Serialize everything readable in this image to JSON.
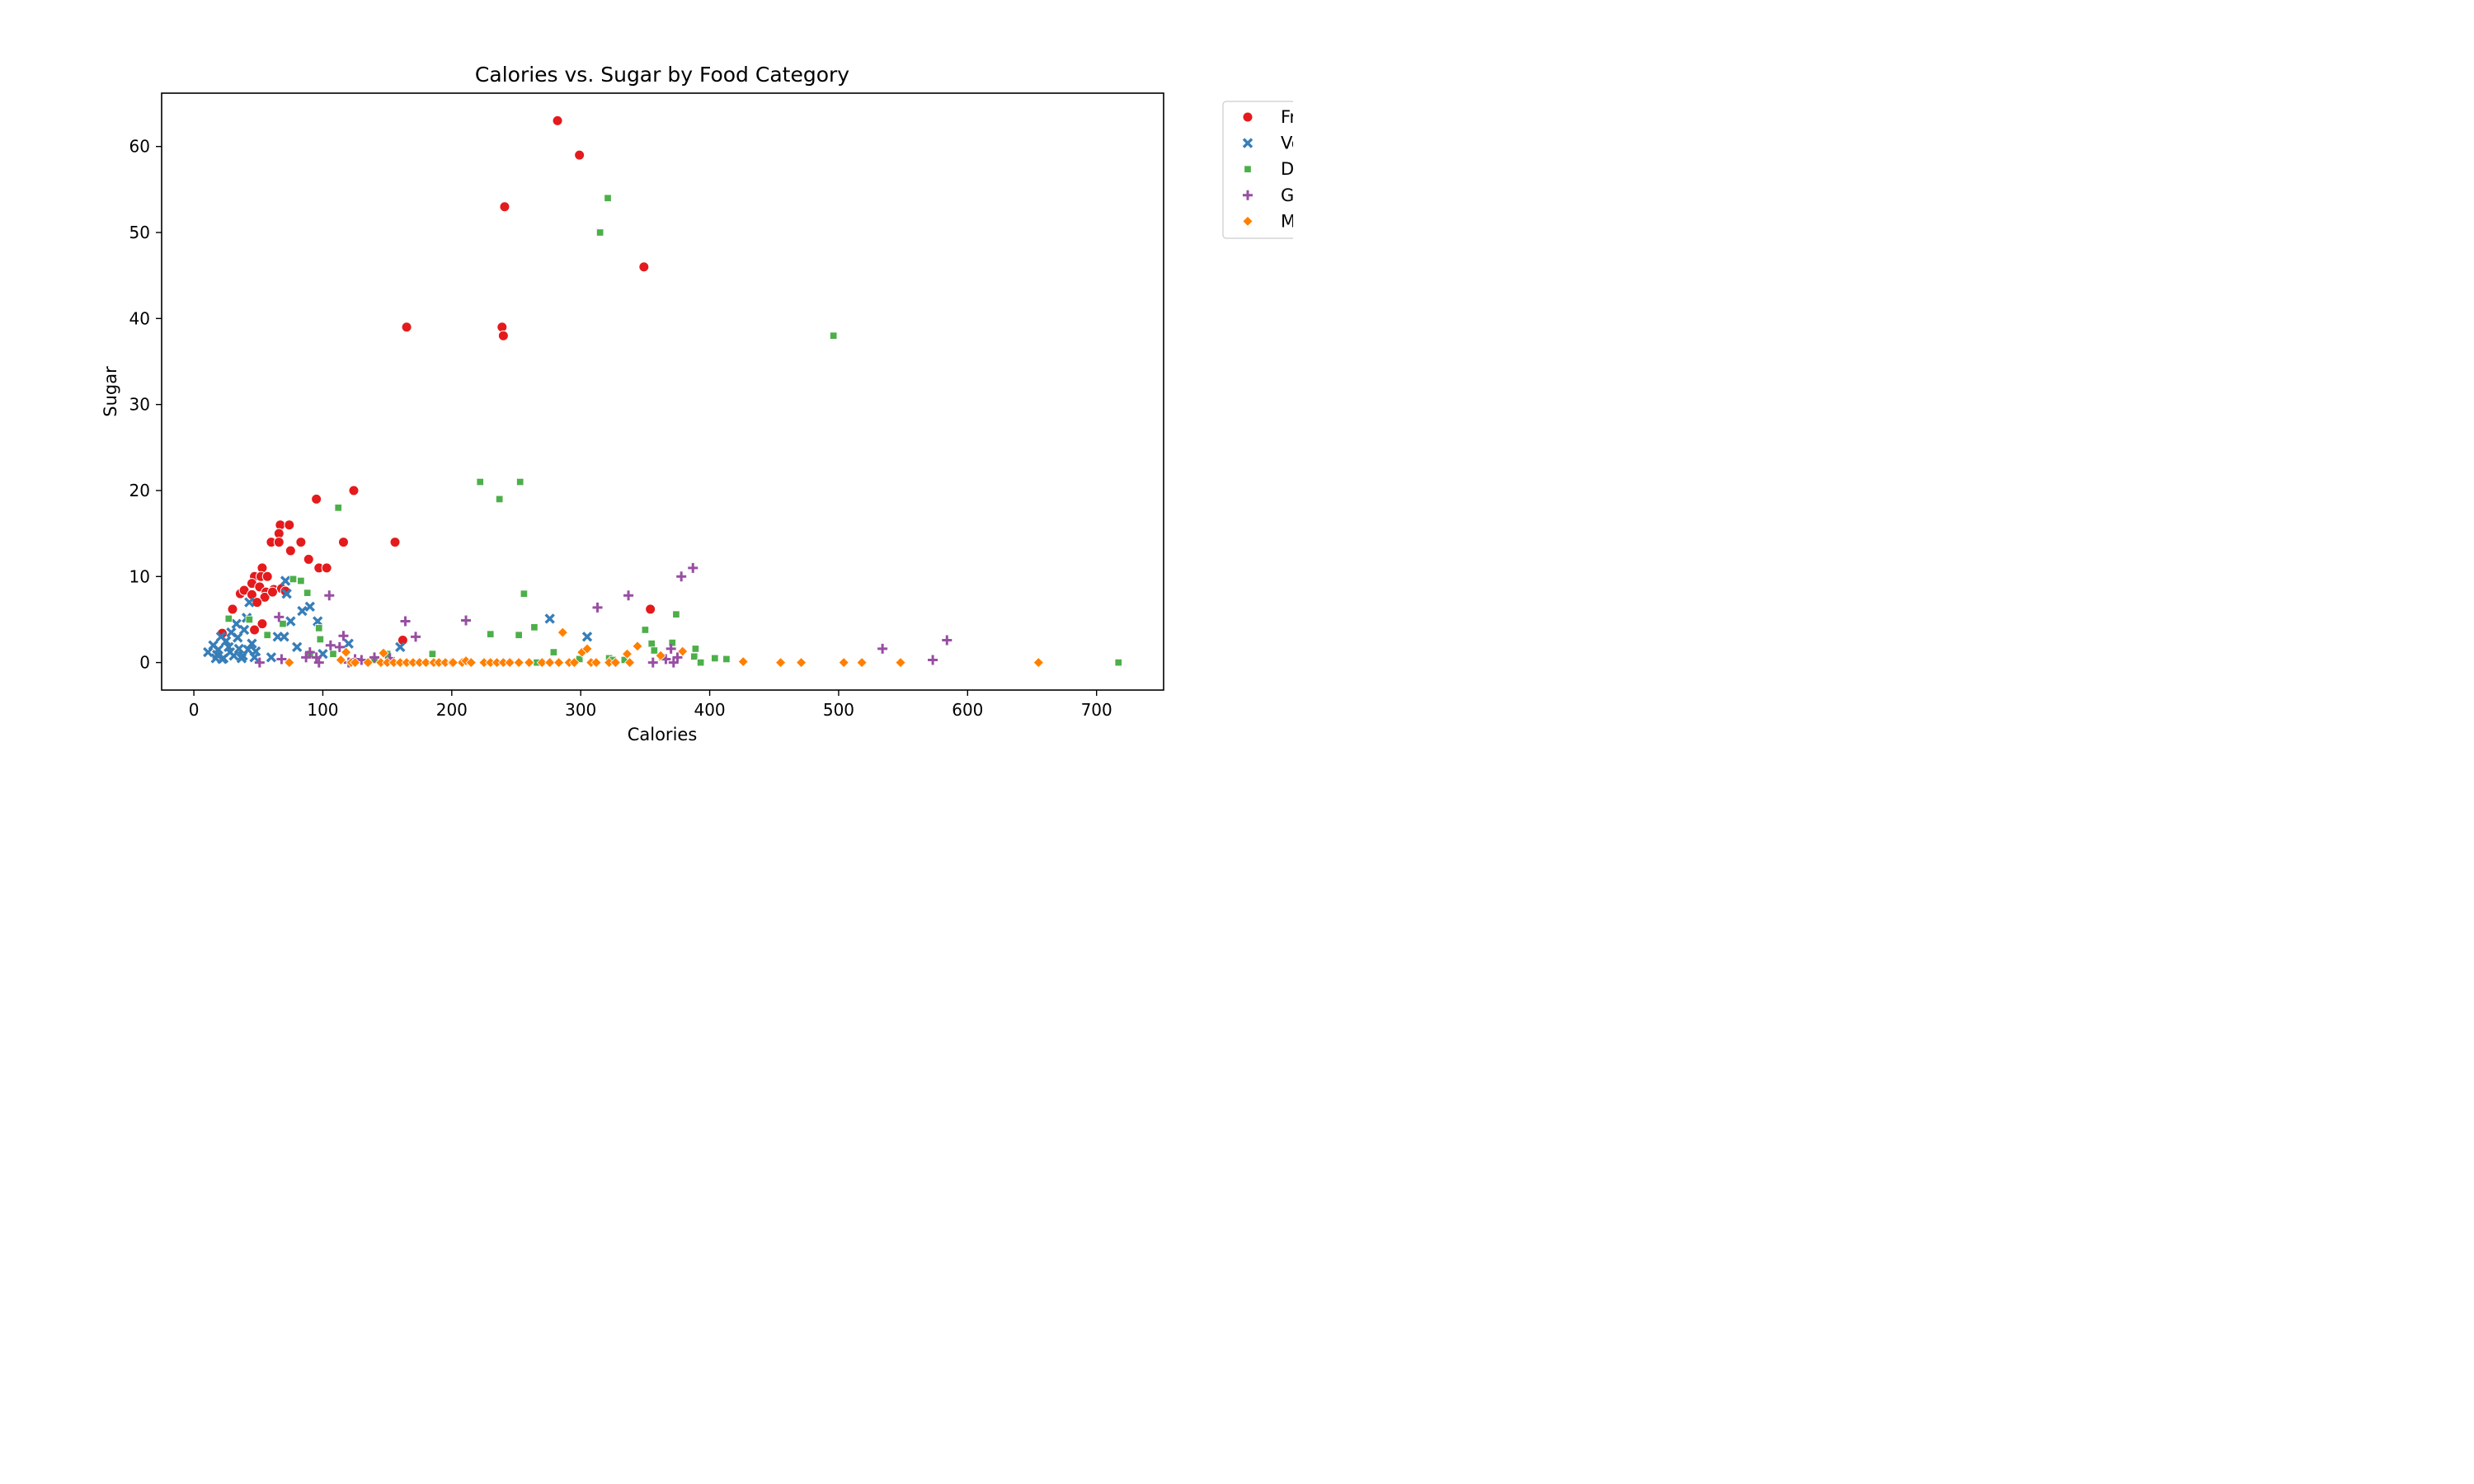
{
  "chart_data": {
    "type": "scatter",
    "title": "Calories vs. Sugar by Food Category",
    "xlabel": "Calories",
    "ylabel": "Sugar",
    "xlim": [
      -25,
      752
    ],
    "ylim": [
      -3.2,
      66.2
    ],
    "xticks": [
      0,
      100,
      200,
      300,
      400,
      500,
      600,
      700
    ],
    "yticks": [
      0,
      10,
      20,
      30,
      40,
      50,
      60
    ],
    "grid": false,
    "legend_position": "outside-top-right",
    "series": [
      {
        "name": "Fr",
        "marker": "circle",
        "color": "#e41a1c",
        "points": [
          [
            282,
            63
          ],
          [
            299,
            59
          ],
          [
            241,
            53
          ],
          [
            349,
            46
          ],
          [
            165,
            39
          ],
          [
            239,
            39
          ],
          [
            240,
            38
          ],
          [
            124,
            20
          ],
          [
            95,
            19
          ],
          [
            67,
            16
          ],
          [
            74,
            16
          ],
          [
            66,
            15
          ],
          [
            60,
            14
          ],
          [
            66,
            14
          ],
          [
            83,
            14
          ],
          [
            116,
            14
          ],
          [
            156,
            14
          ],
          [
            75,
            13
          ],
          [
            89,
            12
          ],
          [
            97,
            11
          ],
          [
            103,
            11
          ],
          [
            53,
            11
          ],
          [
            47,
            10
          ],
          [
            52,
            10
          ],
          [
            57,
            10
          ],
          [
            45,
            9.2
          ],
          [
            51,
            8.8
          ],
          [
            62,
            8.5
          ],
          [
            56,
            8.2
          ],
          [
            68,
            8.6
          ],
          [
            71,
            8.3
          ],
          [
            36,
            8
          ],
          [
            39,
            8.4
          ],
          [
            45,
            7.9
          ],
          [
            55,
            7.6
          ],
          [
            49,
            7
          ],
          [
            61,
            8.2
          ],
          [
            30,
            6.2
          ],
          [
            53,
            4.5
          ],
          [
            47,
            3.8
          ],
          [
            22,
            3.4
          ],
          [
            162,
            2.6
          ],
          [
            354,
            6.2
          ]
        ]
      },
      {
        "name": "Ve",
        "marker": "x",
        "color": "#377eb8",
        "points": [
          [
            11,
            1.2
          ],
          [
            15,
            2
          ],
          [
            17,
            0.5
          ],
          [
            19,
            1.5
          ],
          [
            21,
            3
          ],
          [
            23,
            0.5
          ],
          [
            25,
            2.5
          ],
          [
            27,
            1.8
          ],
          [
            29,
            3.5
          ],
          [
            31,
            0.8
          ],
          [
            33,
            4.5
          ],
          [
            35,
            1.6
          ],
          [
            37,
            0.5
          ],
          [
            39,
            3.8
          ],
          [
            41,
            5.2
          ],
          [
            42,
            1.5
          ],
          [
            43,
            7
          ],
          [
            45,
            2.2
          ],
          [
            47,
            0.6
          ],
          [
            65,
            3
          ],
          [
            70,
            3
          ],
          [
            71,
            9.5
          ],
          [
            72,
            8
          ],
          [
            75,
            4.8
          ],
          [
            80,
            1.8
          ],
          [
            84,
            6
          ],
          [
            90,
            6.5
          ],
          [
            96,
            4.8
          ],
          [
            100,
            1
          ],
          [
            120,
            2.2
          ],
          [
            160,
            1.8
          ],
          [
            276,
            5.1
          ],
          [
            305,
            3
          ],
          [
            18,
            0.9
          ],
          [
            22,
            0.4
          ],
          [
            28,
            1.2
          ],
          [
            34,
            2.9
          ],
          [
            38,
            0.8
          ],
          [
            48,
            1.3
          ],
          [
            60,
            0.6
          ]
        ]
      },
      {
        "name": "D",
        "marker": "square",
        "color": "#4daf4a",
        "points": [
          [
            321,
            54
          ],
          [
            315,
            50
          ],
          [
            496,
            38
          ],
          [
            222,
            21
          ],
          [
            253,
            21
          ],
          [
            237,
            19
          ],
          [
            112,
            18
          ],
          [
            77,
            9.7
          ],
          [
            83,
            9.5
          ],
          [
            88,
            8.1
          ],
          [
            256,
            8
          ],
          [
            69,
            4.5
          ],
          [
            97,
            4
          ],
          [
            98,
            2.7
          ],
          [
            57,
            3.2
          ],
          [
            27,
            5.1
          ],
          [
            43,
            5
          ],
          [
            90,
            1
          ],
          [
            185,
            1
          ],
          [
            230,
            3.3
          ],
          [
            252,
            3.2
          ],
          [
            264,
            4.1
          ],
          [
            279,
            1.2
          ],
          [
            299,
            0.4
          ],
          [
            322,
            0.5
          ],
          [
            325,
            0.3
          ],
          [
            334,
            0.3
          ],
          [
            350,
            3.8
          ],
          [
            355,
            2.2
          ],
          [
            357,
            1.4
          ],
          [
            363,
            0.6
          ],
          [
            371,
            2.3
          ],
          [
            374,
            5.6
          ],
          [
            388,
            0.7
          ],
          [
            389,
            1.6
          ],
          [
            393,
            0
          ],
          [
            404,
            0.5
          ],
          [
            413,
            0.4
          ],
          [
            717,
            0
          ],
          [
            108,
            1
          ],
          [
            140,
            0.3
          ],
          [
            150,
            1
          ],
          [
            266,
            0
          ]
        ]
      },
      {
        "name": "G",
        "marker": "plus",
        "color": "#984ea3",
        "points": [
          [
            387,
            11
          ],
          [
            378,
            10
          ],
          [
            337,
            7.8
          ],
          [
            313,
            6.4
          ],
          [
            105,
            7.8
          ],
          [
            164,
            4.8
          ],
          [
            211,
            4.9
          ],
          [
            66,
            5.3
          ],
          [
            172,
            3
          ],
          [
            116,
            3.1
          ],
          [
            106,
            2
          ],
          [
            113,
            1.8
          ],
          [
            90,
            1.2
          ],
          [
            95,
            0.6
          ],
          [
            97,
            0
          ],
          [
            51,
            0
          ],
          [
            68,
            0.4
          ],
          [
            120,
            0
          ],
          [
            130,
            0.3
          ],
          [
            140,
            0.6
          ],
          [
            370,
            1.6
          ],
          [
            375,
            0.6
          ],
          [
            356,
            0
          ],
          [
            372,
            0
          ],
          [
            534,
            1.6
          ],
          [
            573,
            0.3
          ],
          [
            584,
            2.6
          ],
          [
            87,
            0.6
          ],
          [
            125,
            0.4
          ],
          [
            152,
            0.5
          ],
          [
            366,
            0.4
          ]
        ]
      },
      {
        "name": "M",
        "marker": "diamond",
        "color": "#ff7f00",
        "points": [
          [
            74,
            0
          ],
          [
            114,
            0.3
          ],
          [
            118,
            1.2
          ],
          [
            122,
            0
          ],
          [
            125,
            0
          ],
          [
            135,
            0
          ],
          [
            145,
            0
          ],
          [
            147,
            1.1
          ],
          [
            150,
            0
          ],
          [
            155,
            0
          ],
          [
            160,
            0
          ],
          [
            165,
            0
          ],
          [
            170,
            0
          ],
          [
            175,
            0
          ],
          [
            180,
            0
          ],
          [
            186,
            0
          ],
          [
            190,
            0
          ],
          [
            195,
            0
          ],
          [
            200,
            0
          ],
          [
            208,
            0
          ],
          [
            211,
            0.2
          ],
          [
            215,
            0
          ],
          [
            225,
            0
          ],
          [
            230,
            0
          ],
          [
            235,
            0
          ],
          [
            240,
            0
          ],
          [
            245,
            0
          ],
          [
            252,
            0
          ],
          [
            260,
            0
          ],
          [
            270,
            0
          ],
          [
            276,
            0
          ],
          [
            286,
            3.5
          ],
          [
            291,
            0
          ],
          [
            295,
            0
          ],
          [
            301,
            1.2
          ],
          [
            305,
            1.6
          ],
          [
            308,
            0
          ],
          [
            312,
            0
          ],
          [
            322,
            0
          ],
          [
            327,
            0
          ],
          [
            336,
            1
          ],
          [
            344,
            1.9
          ],
          [
            338,
            0
          ],
          [
            362,
            0.8
          ],
          [
            379,
            1.3
          ],
          [
            426,
            0.1
          ],
          [
            455,
            0
          ],
          [
            471,
            0
          ],
          [
            504,
            0
          ],
          [
            518,
            0
          ],
          [
            548,
            0
          ],
          [
            655,
            0
          ],
          [
            201,
            0
          ],
          [
            283,
            0
          ]
        ]
      }
    ]
  }
}
